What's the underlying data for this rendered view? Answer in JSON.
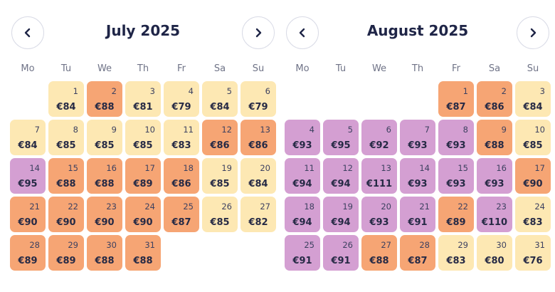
{
  "weekdays": [
    "Mo",
    "Tu",
    "We",
    "Th",
    "Fr",
    "Sa",
    "Su"
  ],
  "colors": {
    "cheap": "#fde8b3",
    "mid": "#f6a574",
    "high": "#d49fd2"
  },
  "months": [
    {
      "title": "July 2025",
      "start_offset": 1,
      "days": [
        {
          "day": "1",
          "price": "€84",
          "tier": "cheap"
        },
        {
          "day": "2",
          "price": "€88",
          "tier": "mid"
        },
        {
          "day": "3",
          "price": "€81",
          "tier": "cheap"
        },
        {
          "day": "4",
          "price": "€79",
          "tier": "cheap"
        },
        {
          "day": "5",
          "price": "€84",
          "tier": "cheap"
        },
        {
          "day": "6",
          "price": "€79",
          "tier": "cheap"
        },
        {
          "day": "7",
          "price": "€84",
          "tier": "cheap"
        },
        {
          "day": "8",
          "price": "€85",
          "tier": "cheap"
        },
        {
          "day": "9",
          "price": "€85",
          "tier": "cheap"
        },
        {
          "day": "10",
          "price": "€85",
          "tier": "cheap"
        },
        {
          "day": "11",
          "price": "€83",
          "tier": "cheap"
        },
        {
          "day": "12",
          "price": "€86",
          "tier": "mid"
        },
        {
          "day": "13",
          "price": "€86",
          "tier": "mid"
        },
        {
          "day": "14",
          "price": "€95",
          "tier": "high"
        },
        {
          "day": "15",
          "price": "€88",
          "tier": "mid"
        },
        {
          "day": "16",
          "price": "€88",
          "tier": "mid"
        },
        {
          "day": "17",
          "price": "€89",
          "tier": "mid"
        },
        {
          "day": "18",
          "price": "€86",
          "tier": "mid"
        },
        {
          "day": "19",
          "price": "€85",
          "tier": "cheap"
        },
        {
          "day": "20",
          "price": "€84",
          "tier": "cheap"
        },
        {
          "day": "21",
          "price": "€90",
          "tier": "mid"
        },
        {
          "day": "22",
          "price": "€90",
          "tier": "mid"
        },
        {
          "day": "23",
          "price": "€90",
          "tier": "mid"
        },
        {
          "day": "24",
          "price": "€90",
          "tier": "mid"
        },
        {
          "day": "25",
          "price": "€87",
          "tier": "mid"
        },
        {
          "day": "26",
          "price": "€85",
          "tier": "cheap"
        },
        {
          "day": "27",
          "price": "€82",
          "tier": "cheap"
        },
        {
          "day": "28",
          "price": "€89",
          "tier": "mid"
        },
        {
          "day": "29",
          "price": "€89",
          "tier": "mid"
        },
        {
          "day": "30",
          "price": "€88",
          "tier": "mid"
        },
        {
          "day": "31",
          "price": "€88",
          "tier": "mid"
        }
      ]
    },
    {
      "title": "August 2025",
      "start_offset": 4,
      "days": [
        {
          "day": "1",
          "price": "€87",
          "tier": "mid"
        },
        {
          "day": "2",
          "price": "€86",
          "tier": "mid"
        },
        {
          "day": "3",
          "price": "€84",
          "tier": "cheap"
        },
        {
          "day": "4",
          "price": "€93",
          "tier": "high"
        },
        {
          "day": "5",
          "price": "€95",
          "tier": "high"
        },
        {
          "day": "6",
          "price": "€92",
          "tier": "high"
        },
        {
          "day": "7",
          "price": "€93",
          "tier": "high"
        },
        {
          "day": "8",
          "price": "€93",
          "tier": "high"
        },
        {
          "day": "9",
          "price": "€88",
          "tier": "mid"
        },
        {
          "day": "10",
          "price": "€85",
          "tier": "cheap"
        },
        {
          "day": "11",
          "price": "€94",
          "tier": "high"
        },
        {
          "day": "12",
          "price": "€94",
          "tier": "high"
        },
        {
          "day": "13",
          "price": "€111",
          "tier": "high"
        },
        {
          "day": "14",
          "price": "€93",
          "tier": "high"
        },
        {
          "day": "15",
          "price": "€93",
          "tier": "high"
        },
        {
          "day": "16",
          "price": "€93",
          "tier": "high"
        },
        {
          "day": "17",
          "price": "€90",
          "tier": "mid"
        },
        {
          "day": "18",
          "price": "€94",
          "tier": "high"
        },
        {
          "day": "19",
          "price": "€94",
          "tier": "high"
        },
        {
          "day": "20",
          "price": "€93",
          "tier": "high"
        },
        {
          "day": "21",
          "price": "€91",
          "tier": "high"
        },
        {
          "day": "22",
          "price": "€89",
          "tier": "mid"
        },
        {
          "day": "23",
          "price": "€110",
          "tier": "high"
        },
        {
          "day": "24",
          "price": "€83",
          "tier": "cheap"
        },
        {
          "day": "25",
          "price": "€91",
          "tier": "high"
        },
        {
          "day": "26",
          "price": "€91",
          "tier": "high"
        },
        {
          "day": "27",
          "price": "€88",
          "tier": "mid"
        },
        {
          "day": "28",
          "price": "€87",
          "tier": "mid"
        },
        {
          "day": "29",
          "price": "€83",
          "tier": "cheap"
        },
        {
          "day": "30",
          "price": "€80",
          "tier": "cheap"
        },
        {
          "day": "31",
          "price": "€76",
          "tier": "cheap"
        }
      ]
    }
  ],
  "icons": {
    "prev": "chevron-left-icon",
    "next": "chevron-right-icon"
  }
}
